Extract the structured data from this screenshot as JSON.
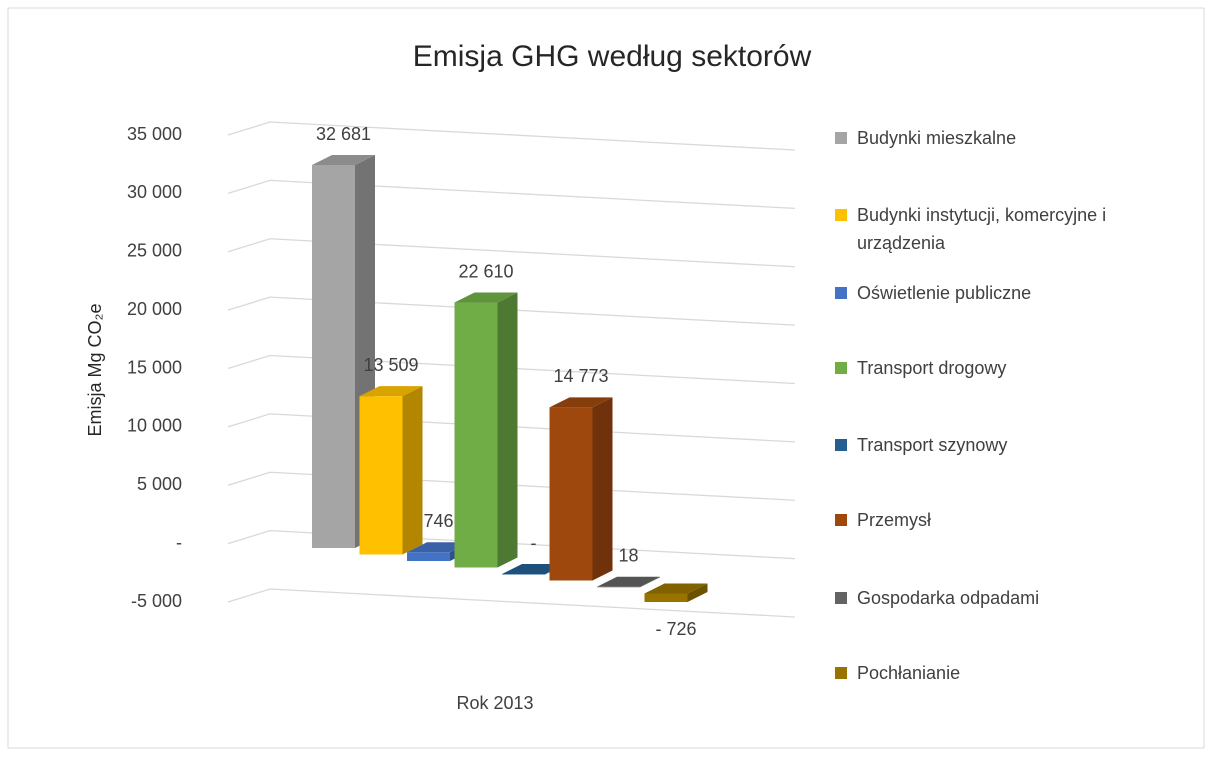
{
  "chart_data": {
    "type": "bar3d",
    "title": "Emisja GHG według sektorów",
    "y_label": "Emisja Mg CO₂e",
    "categories": [
      "Rok 2013"
    ],
    "ylim": [
      -5000,
      35000
    ],
    "yticks": [
      {
        "value": -5000,
        "label": "-5 000"
      },
      {
        "value": 0,
        "label": "-"
      },
      {
        "value": 5000,
        "label": "5 000"
      },
      {
        "value": 10000,
        "label": "10 000"
      },
      {
        "value": 15000,
        "label": "15 000"
      },
      {
        "value": 20000,
        "label": "20 000"
      },
      {
        "value": 25000,
        "label": "25 000"
      },
      {
        "value": 30000,
        "label": "30 000"
      },
      {
        "value": 35000,
        "label": "35 000"
      }
    ],
    "grid": true,
    "legend": "right",
    "series": [
      {
        "name": "Budynki mieszkalne",
        "color": "#a5a5a5",
        "values": [
          32681
        ],
        "value_labels": [
          "32 681"
        ]
      },
      {
        "name": "Budynki instytucji, komercyjne i urządzenia",
        "color": "#ffc000",
        "values": [
          13509
        ],
        "value_labels": [
          "13 509"
        ]
      },
      {
        "name": "Oświetlenie publiczne",
        "color": "#4472c4",
        "values": [
          746
        ],
        "value_labels": [
          "746"
        ]
      },
      {
        "name": "Transport drogowy",
        "color": "#70ad47",
        "values": [
          22610
        ],
        "value_labels": [
          "22 610"
        ]
      },
      {
        "name": "Transport szynowy",
        "color": "#255e91",
        "values": [
          0
        ],
        "value_labels": [
          "-"
        ]
      },
      {
        "name": "Przemysł",
        "color": "#9e480e",
        "values": [
          14773
        ],
        "value_labels": [
          "14 773"
        ]
      },
      {
        "name": "Gospodarka odpadami",
        "color": "#636363",
        "values": [
          18
        ],
        "value_labels": [
          "18"
        ]
      },
      {
        "name": "Pochłanianie",
        "color": "#997300",
        "values": [
          -726
        ],
        "value_labels": [
          "- 726"
        ]
      }
    ]
  }
}
